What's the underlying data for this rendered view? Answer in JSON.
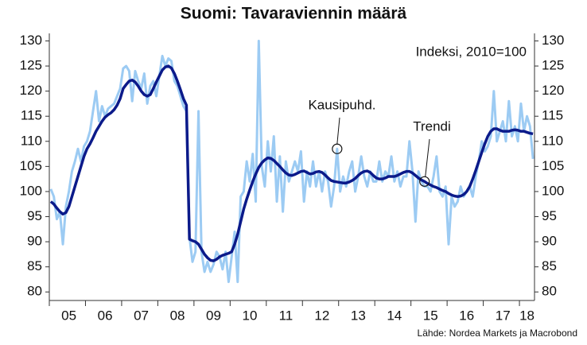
{
  "chart_data": {
    "type": "line",
    "title": "Suomi: Tavaraviennin määrä",
    "subtitle": "Indeksi, 2010=100",
    "source": "Lähde: Nordea Markets ja Macrobond",
    "categories": [
      null,
      null,
      null,
      null,
      null,
      null,
      "05",
      null,
      null,
      null,
      null,
      null,
      null,
      null,
      null,
      null,
      null,
      null,
      "06",
      null,
      null,
      null,
      null,
      null,
      null,
      null,
      null,
      null,
      null,
      null,
      "07",
      null,
      null,
      null,
      null,
      null,
      null,
      null,
      null,
      null,
      null,
      null,
      "08",
      null,
      null,
      null,
      null,
      null,
      null,
      null,
      null,
      null,
      null,
      null,
      "09",
      null,
      null,
      null,
      null,
      null,
      null,
      null,
      null,
      null,
      null,
      null,
      "10",
      null,
      null,
      null,
      null,
      null,
      null,
      null,
      null,
      null,
      null,
      null,
      "11",
      null,
      null,
      null,
      null,
      null,
      null,
      null,
      null,
      null,
      null,
      null,
      "12",
      null,
      null,
      null,
      null,
      null,
      null,
      null,
      null,
      null,
      null,
      null,
      "13",
      null,
      null,
      null,
      null,
      null,
      null,
      null,
      null,
      null,
      null,
      null,
      "14",
      null,
      null,
      null,
      null,
      null,
      null,
      null,
      null,
      null,
      null,
      null,
      "15",
      null,
      null,
      null,
      null,
      null,
      null,
      null,
      null,
      null,
      null,
      null,
      "16",
      null,
      null,
      null,
      null,
      null,
      null,
      null,
      null,
      null,
      null,
      null,
      "17",
      null,
      null,
      null,
      null,
      null,
      null,
      null,
      "18",
      null,
      null
    ],
    "series": [
      {
        "name": "Kausipuhd.",
        "color": "#9ccbf3",
        "values": [
          100.5,
          99,
          94.5,
          96,
          89.5,
          97,
          100,
          104,
          106,
          108.5,
          106,
          109,
          110,
          112,
          116,
          120,
          114,
          117,
          115,
          116.5,
          117,
          117.5,
          119,
          120.5,
          124.5,
          125,
          124,
          118,
          124,
          122,
          120.5,
          123.5,
          117.5,
          121,
          122,
          119,
          123,
          127,
          125,
          126.5,
          126,
          122,
          121,
          119,
          117,
          116,
          91,
          86,
          88,
          116,
          88,
          84,
          86,
          84,
          85.5,
          88,
          87,
          84.5,
          88,
          82,
          87,
          92,
          82,
          99,
          100,
          106,
          102,
          107.5,
          98,
          130,
          105,
          101,
          110,
          104,
          111,
          98,
          107,
          96,
          106,
          102,
          104,
          106,
          104,
          108,
          98,
          104,
          101,
          106,
          101,
          104,
          100,
          104,
          102,
          97,
          101,
          108.5,
          100,
          103,
          101,
          104,
          106,
          100,
          103,
          107,
          103,
          101,
          104,
          102,
          102,
          106,
          102,
          104,
          103,
          107,
          102,
          104,
          101,
          103,
          103,
          110,
          104,
          94,
          104,
          102,
          101,
          101,
          100,
          103,
          107,
          100,
          99,
          101,
          89.5,
          99,
          97,
          98,
          101,
          99,
          100,
          101,
          99,
          103,
          106,
          110,
          108,
          109,
          111,
          120,
          110,
          112,
          114,
          110,
          118,
          111,
          113,
          110,
          117.5,
          112,
          115,
          113,
          106.5
        ]
      },
      {
        "name": "Trendi",
        "color": "#0b1a8a",
        "values": [
          98,
          97.5,
          96.7,
          96,
          95.5,
          95.8,
          97,
          99,
          101,
          103,
          105,
          107,
          108.5,
          109.5,
          110.7,
          112,
          113,
          114,
          114.8,
          115.3,
          115.7,
          116.3,
          117.2,
          118.5,
          120.5,
          121.3,
          122,
          122.2,
          121.8,
          121,
          120,
          119.3,
          119,
          119.3,
          120.5,
          121.8,
          123,
          124.2,
          124.8,
          125,
          124.6,
          123.5,
          122,
          120.3,
          118.5,
          117.2,
          90.5,
          90.2,
          90,
          89.5,
          88.5,
          87.5,
          86.8,
          86.3,
          86.2,
          86.5,
          87,
          87.3,
          87.5,
          87.7,
          88,
          89.5,
          91.5,
          94,
          96.5,
          98.5,
          100.3,
          102,
          103.5,
          104.8,
          105.7,
          106.3,
          106.7,
          106.6,
          106.2,
          105.6,
          105,
          104.3,
          103.7,
          103.3,
          103.2,
          103.4,
          103.7,
          104,
          104.1,
          103.8,
          103.5,
          103.6,
          103.9,
          104,
          103.8,
          103.3,
          102.7,
          102.2,
          102,
          101.9,
          101.8,
          101.7,
          101.7,
          101.9,
          102.2,
          102.6,
          103.2,
          103.7,
          104,
          104.1,
          103.8,
          103.2,
          102.7,
          102.5,
          102.5,
          102.7,
          103,
          103,
          103,
          103.2,
          103.5,
          103.8,
          104,
          104,
          103.7,
          103.2,
          102.7,
          102.3,
          102,
          101.6,
          101.3,
          101,
          100.8,
          100.5,
          100.2,
          100,
          99.6,
          99.3,
          99.1,
          99,
          99.1,
          99.4,
          100,
          101,
          102.5,
          104.2,
          106,
          107.8,
          109.5,
          111,
          112,
          112.5,
          112.5,
          112.2,
          112,
          112,
          112,
          112.2,
          112.3,
          112.2,
          112,
          112,
          111.8,
          111.6,
          111.5
        ]
      }
    ],
    "ylim": [
      78.3,
      131.5
    ],
    "yticks": [
      80,
      85,
      90,
      95,
      100,
      105,
      110,
      115,
      120,
      125,
      130
    ],
    "y2lim": [
      78.3,
      131.5
    ],
    "y2ticks": [
      80,
      85,
      90,
      95,
      100,
      105,
      110,
      115,
      120,
      125,
      130
    ],
    "grid": false
  }
}
